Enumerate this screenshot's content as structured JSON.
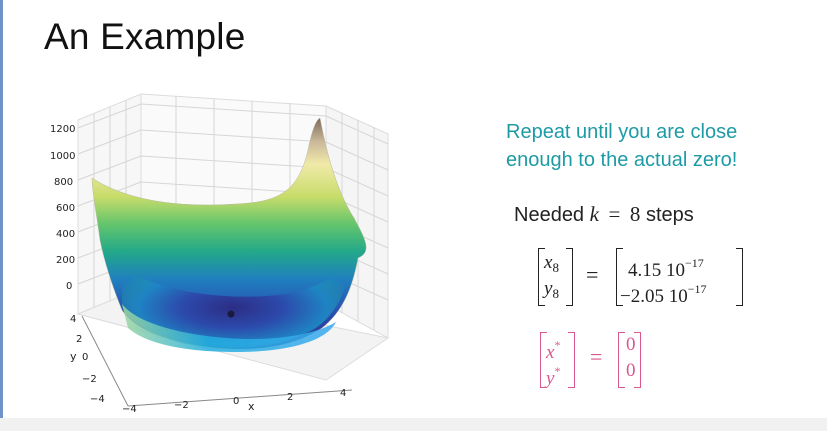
{
  "slide": {
    "title": "An Example",
    "note_line1": "Repeat until you are close",
    "note_line2": "enough to the actual zero!",
    "steps_prefix": "Needed",
    "steps_var": "k",
    "steps_eq": "=",
    "steps_value": "8",
    "steps_suffix": "steps",
    "iterate": {
      "x_var": "x",
      "y_var": "y",
      "subscript": "8",
      "x_value": "4.15 10",
      "x_exp": "−17",
      "y_value": "−2.05 10",
      "y_exp": "−17"
    },
    "solution": {
      "x_var": "x",
      "y_var": "y",
      "star": "*",
      "x_value": "0",
      "y_value": "0"
    },
    "colors": {
      "note": "#1d9ba5",
      "solution": "#d9578f",
      "accent_rule": "#6f93c9"
    }
  },
  "plot": {
    "z_ticks": [
      "1200",
      "1000",
      "800",
      "600",
      "400",
      "200",
      "0"
    ],
    "y_ticks": [
      "4",
      "2",
      "0",
      "−2",
      "−4"
    ],
    "x_ticks": [
      "−4",
      "−2",
      "0",
      "2",
      "4"
    ],
    "y_label": "y",
    "x_label": "x"
  }
}
